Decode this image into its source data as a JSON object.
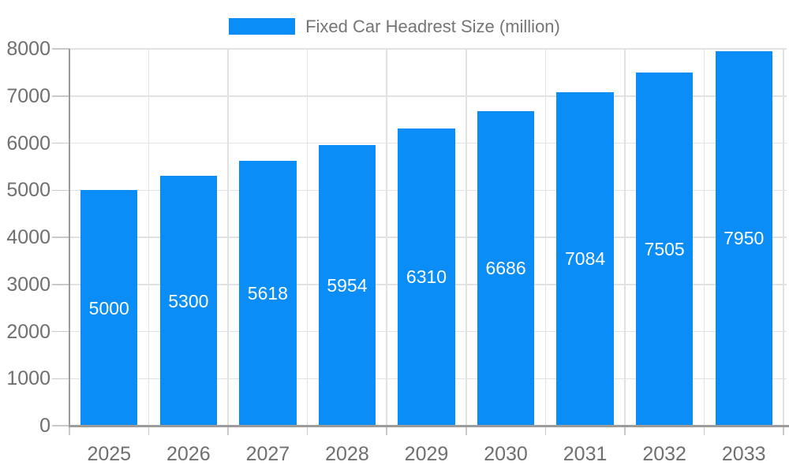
{
  "legend": {
    "label": "Fixed Car Headrest Size (million)"
  },
  "chart_data": {
    "type": "bar",
    "title": "Fixed Car Headrest Size (million)",
    "categories": [
      "2025",
      "2026",
      "2027",
      "2028",
      "2029",
      "2030",
      "2031",
      "2032",
      "2033"
    ],
    "values": [
      5000,
      5300,
      5618,
      5954,
      6310,
      6686,
      7084,
      7505,
      7950
    ],
    "xlabel": "",
    "ylabel": "",
    "ylim": [
      0,
      8000
    ],
    "yticks": [
      0,
      1000,
      2000,
      3000,
      4000,
      5000,
      6000,
      7000,
      8000
    ],
    "grid": true,
    "legend_position": "top-center",
    "bar_label_position": "center-inside",
    "colors": {
      "bar": "#0a8df6",
      "bar_label": "#ffffff",
      "grid": "#e2e2e2",
      "tick": "#c9c9c9",
      "axis_line": "#9c9c9c",
      "axis_label": "#6f6f6f",
      "legend_text": "#757575",
      "background": "#ffffff"
    }
  }
}
